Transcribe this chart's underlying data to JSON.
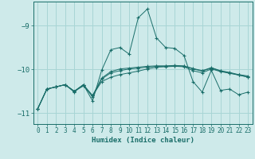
{
  "xlabel": "Humidex (Indice chaleur)",
  "background_color": "#ceeaea",
  "grid_color": "#a8d5d5",
  "line_color": "#1a6e6a",
  "xlim": [
    -0.5,
    23.5
  ],
  "ylim": [
    -11.25,
    -8.45
  ],
  "yticks": [
    -11,
    -10,
    -9
  ],
  "xticks": [
    0,
    1,
    2,
    3,
    4,
    5,
    6,
    7,
    8,
    9,
    10,
    11,
    12,
    13,
    14,
    15,
    16,
    17,
    18,
    19,
    20,
    21,
    22,
    23
  ],
  "line1_y": [
    -10.9,
    -10.45,
    -10.4,
    -10.35,
    -10.52,
    -10.35,
    -10.72,
    -10.02,
    -9.55,
    -9.5,
    -9.65,
    -8.82,
    -8.62,
    -9.28,
    -9.5,
    -9.52,
    -9.68,
    -10.28,
    -10.52,
    -10.02,
    -10.48,
    -10.45,
    -10.58,
    -10.52
  ],
  "line2_y": [
    -10.9,
    -10.45,
    -10.4,
    -10.35,
    -10.5,
    -10.38,
    -10.6,
    -10.28,
    -10.18,
    -10.12,
    -10.08,
    -10.04,
    -9.99,
    -9.95,
    -9.94,
    -9.93,
    -9.94,
    -10.03,
    -10.08,
    -9.99,
    -10.05,
    -10.09,
    -10.13,
    -10.18
  ],
  "line3_y": [
    -10.9,
    -10.45,
    -10.4,
    -10.35,
    -10.5,
    -10.35,
    -10.63,
    -10.22,
    -10.08,
    -10.03,
    -9.99,
    -9.97,
    -9.95,
    -9.93,
    -9.93,
    -9.92,
    -9.93,
    -9.99,
    -10.04,
    -9.97,
    -10.04,
    -10.08,
    -10.13,
    -10.17
  ],
  "line4_y": [
    -10.9,
    -10.45,
    -10.4,
    -10.35,
    -10.5,
    -10.35,
    -10.6,
    -10.2,
    -10.05,
    -9.99,
    -9.97,
    -9.95,
    -9.93,
    -9.92,
    -9.92,
    -9.91,
    -9.92,
    -9.98,
    -10.03,
    -9.96,
    -10.03,
    -10.07,
    -10.12,
    -10.15
  ]
}
